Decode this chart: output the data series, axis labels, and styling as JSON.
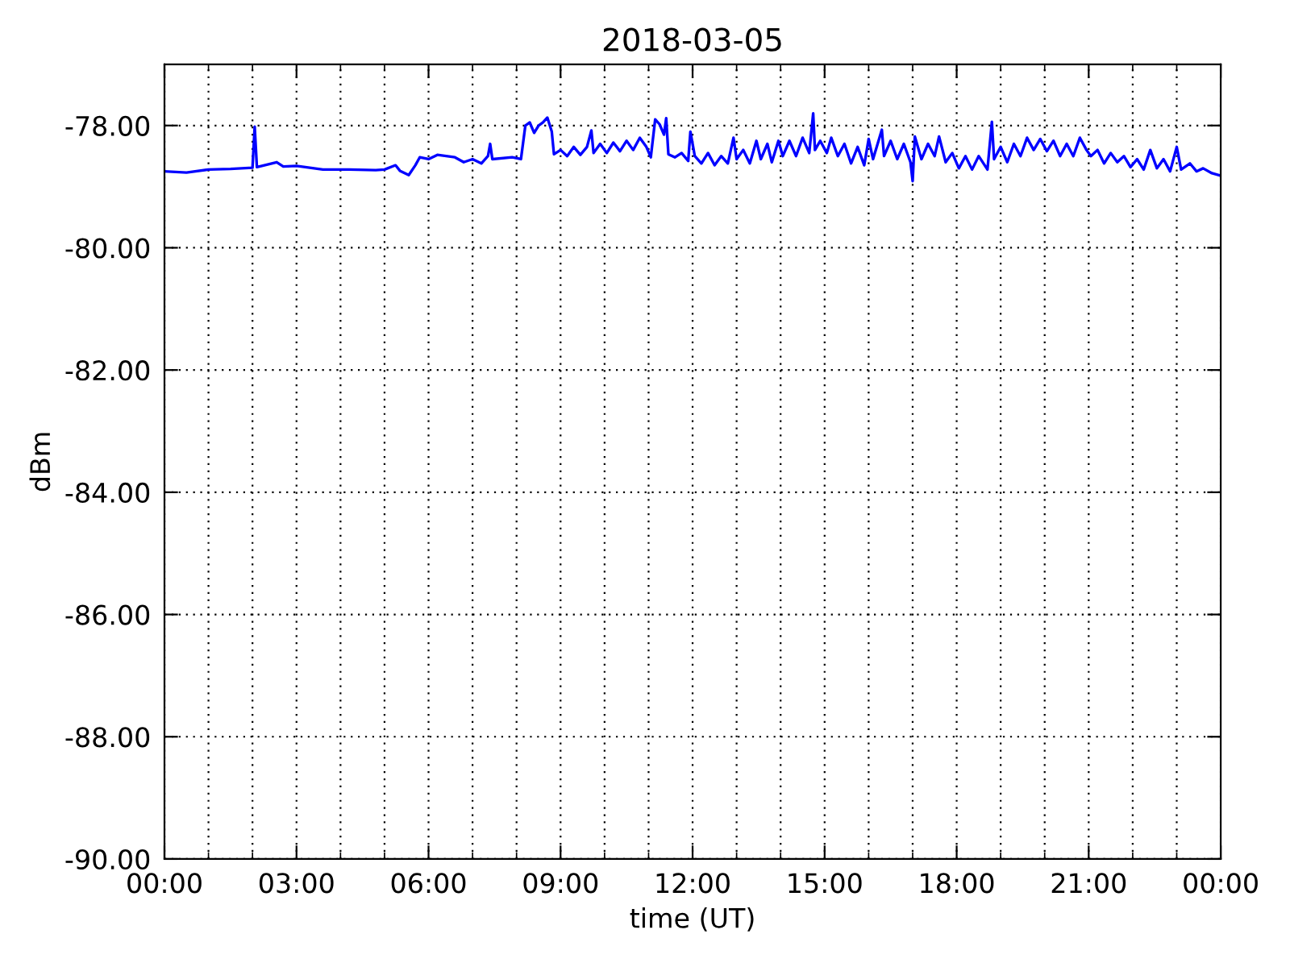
{
  "chart_data": {
    "type": "line",
    "title": "2018-03-05",
    "xlabel": "time (UT)",
    "ylabel": "dBm",
    "x": [
      0.0,
      0.5,
      1.0,
      1.5,
      2.0,
      2.05,
      2.1,
      2.55,
      2.7,
      3.0,
      3.6,
      4.2,
      4.8,
      5.0,
      5.25,
      5.35,
      5.55,
      5.7,
      5.8,
      6.0,
      6.2,
      6.6,
      6.8,
      7.0,
      7.2,
      7.35,
      7.4,
      7.45,
      7.9,
      8.1,
      8.2,
      8.3,
      8.4,
      8.5,
      8.6,
      8.7,
      8.8,
      8.85,
      9.0,
      9.15,
      9.3,
      9.45,
      9.6,
      9.7,
      9.75,
      9.9,
      10.05,
      10.2,
      10.35,
      10.5,
      10.65,
      10.8,
      10.95,
      11.05,
      11.15,
      11.25,
      11.35,
      11.4,
      11.45,
      11.6,
      11.75,
      11.9,
      11.95,
      12.05,
      12.2,
      12.35,
      12.5,
      12.65,
      12.8,
      12.93,
      13.0,
      13.15,
      13.3,
      13.45,
      13.55,
      13.7,
      13.8,
      13.95,
      14.05,
      14.2,
      14.35,
      14.5,
      14.65,
      14.74,
      14.78,
      14.9,
      15.05,
      15.15,
      15.3,
      15.45,
      15.6,
      15.75,
      15.9,
      16.0,
      16.1,
      16.3,
      16.35,
      16.5,
      16.65,
      16.8,
      16.95,
      17.0,
      17.05,
      17.2,
      17.35,
      17.5,
      17.6,
      17.75,
      17.9,
      18.05,
      18.2,
      18.35,
      18.5,
      18.7,
      18.8,
      18.85,
      19.0,
      19.15,
      19.3,
      19.45,
      19.6,
      19.75,
      19.9,
      20.05,
      20.2,
      20.35,
      20.5,
      20.65,
      20.8,
      20.95,
      21.05,
      21.2,
      21.35,
      21.5,
      21.65,
      21.8,
      21.95,
      22.1,
      22.25,
      22.4,
      22.55,
      22.7,
      22.85,
      23.0,
      23.1,
      23.3,
      23.45,
      23.6,
      23.8,
      24.0
    ],
    "series": [
      {
        "color": "#0000ff",
        "values": [
          -78.75,
          -78.77,
          -78.72,
          -78.71,
          -78.69,
          -78.02,
          -78.68,
          -78.6,
          -78.67,
          -78.66,
          -78.72,
          -78.72,
          -78.73,
          -78.72,
          -78.65,
          -78.74,
          -78.81,
          -78.65,
          -78.52,
          -78.55,
          -78.48,
          -78.52,
          -78.6,
          -78.55,
          -78.62,
          -78.5,
          -78.3,
          -78.55,
          -78.52,
          -78.55,
          -78.0,
          -77.95,
          -78.12,
          -78.0,
          -77.95,
          -77.87,
          -78.1,
          -78.47,
          -78.4,
          -78.5,
          -78.35,
          -78.48,
          -78.35,
          -78.08,
          -78.45,
          -78.3,
          -78.45,
          -78.28,
          -78.42,
          -78.25,
          -78.4,
          -78.2,
          -78.35,
          -78.52,
          -77.9,
          -77.98,
          -78.15,
          -77.88,
          -78.47,
          -78.52,
          -78.45,
          -78.58,
          -78.1,
          -78.5,
          -78.62,
          -78.45,
          -78.65,
          -78.5,
          -78.62,
          -78.2,
          -78.55,
          -78.4,
          -78.62,
          -78.25,
          -78.55,
          -78.3,
          -78.6,
          -78.25,
          -78.5,
          -78.25,
          -78.5,
          -78.2,
          -78.45,
          -77.8,
          -78.4,
          -78.25,
          -78.45,
          -78.2,
          -78.5,
          -78.3,
          -78.62,
          -78.35,
          -78.65,
          -78.22,
          -78.55,
          -78.07,
          -78.5,
          -78.25,
          -78.55,
          -78.3,
          -78.6,
          -78.91,
          -78.18,
          -78.55,
          -78.3,
          -78.5,
          -78.18,
          -78.6,
          -78.45,
          -78.7,
          -78.5,
          -78.72,
          -78.5,
          -78.72,
          -77.94,
          -78.55,
          -78.35,
          -78.6,
          -78.3,
          -78.5,
          -78.2,
          -78.4,
          -78.22,
          -78.42,
          -78.25,
          -78.5,
          -78.3,
          -78.5,
          -78.2,
          -78.4,
          -78.5,
          -78.4,
          -78.62,
          -78.45,
          -78.6,
          -78.5,
          -78.68,
          -78.55,
          -78.72,
          -78.4,
          -78.7,
          -78.55,
          -78.75,
          -78.35,
          -78.72,
          -78.62,
          -78.75,
          -78.7,
          -78.78,
          -78.82
        ]
      }
    ],
    "xlim": [
      0,
      24
    ],
    "xticks": [
      {
        "value": 0,
        "label": "00:00"
      },
      {
        "value": 1,
        "label": null
      },
      {
        "value": 2,
        "label": null
      },
      {
        "value": 3,
        "label": "03:00"
      },
      {
        "value": 4,
        "label": null
      },
      {
        "value": 5,
        "label": null
      },
      {
        "value": 6,
        "label": "06:00"
      },
      {
        "value": 7,
        "label": null
      },
      {
        "value": 8,
        "label": null
      },
      {
        "value": 9,
        "label": "09:00"
      },
      {
        "value": 10,
        "label": null
      },
      {
        "value": 11,
        "label": null
      },
      {
        "value": 12,
        "label": "12:00"
      },
      {
        "value": 13,
        "label": null
      },
      {
        "value": 14,
        "label": null
      },
      {
        "value": 15,
        "label": "15:00"
      },
      {
        "value": 16,
        "label": null
      },
      {
        "value": 17,
        "label": null
      },
      {
        "value": 18,
        "label": "18:00"
      },
      {
        "value": 19,
        "label": null
      },
      {
        "value": 20,
        "label": null
      },
      {
        "value": 21,
        "label": "21:00"
      },
      {
        "value": 22,
        "label": null
      },
      {
        "value": 23,
        "label": null
      },
      {
        "value": 24,
        "label": "00:00"
      }
    ],
    "ylim": [
      -90,
      -77
    ],
    "yticks": [
      {
        "value": -90,
        "label": "-90.00"
      },
      {
        "value": -88,
        "label": "-88.00"
      },
      {
        "value": -86,
        "label": "-86.00"
      },
      {
        "value": -84,
        "label": "-84.00"
      },
      {
        "value": -82,
        "label": "-82.00"
      },
      {
        "value": -80,
        "label": "-80.00"
      },
      {
        "value": -78,
        "label": "-78.00"
      }
    ],
    "grid": true
  }
}
